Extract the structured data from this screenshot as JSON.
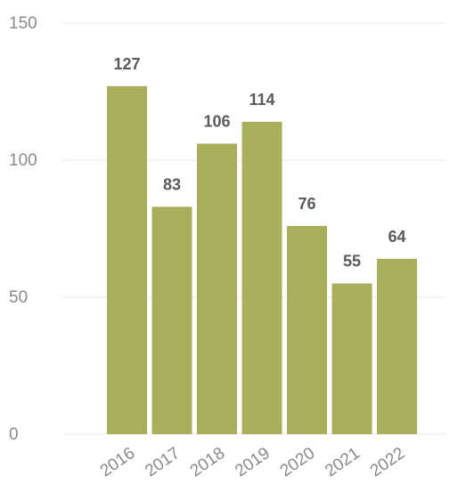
{
  "chart_data": {
    "type": "bar",
    "categories": [
      "2016",
      "2017",
      "2018",
      "2019",
      "2020",
      "2021",
      "2022"
    ],
    "values": [
      127,
      83,
      106,
      114,
      76,
      55,
      64
    ],
    "data_labels": [
      "127",
      "83",
      "106",
      "114",
      "76",
      "55",
      "64"
    ],
    "yticks": [
      0,
      50,
      100,
      150
    ],
    "ytick_labels": [
      "0",
      "50",
      "100",
      "150"
    ],
    "ylim": [
      0,
      150
    ],
    "grid": true,
    "legend": "none",
    "bar_color": "#a8ae5a",
    "title": "",
    "xlabel": "",
    "ylabel": ""
  }
}
